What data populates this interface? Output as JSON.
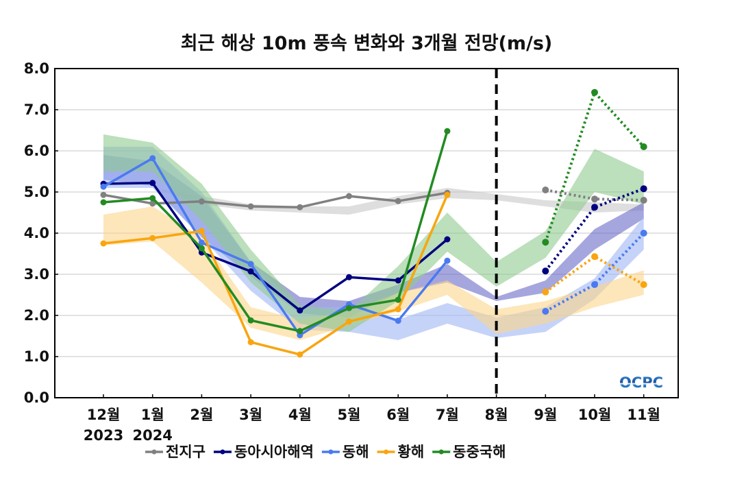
{
  "chart_data": {
    "type": "line",
    "title": "최근 해상 10m 풍속 변화와 3개월 전망(m/s)",
    "xlabel": "",
    "ylabel": "",
    "ylim": [
      0,
      8
    ],
    "yticks": [
      "0.0",
      "1.0",
      "2.0",
      "3.0",
      "4.0",
      "5.0",
      "6.0",
      "7.0",
      "8.0"
    ],
    "grid": "horizontal",
    "categories": [
      "12월",
      "1월",
      "2월",
      "3월",
      "4월",
      "5월",
      "6월",
      "7월",
      "8월",
      "9월",
      "10월",
      "11월"
    ],
    "year_labels": [
      {
        "category": "12월",
        "label": "2023"
      },
      {
        "category": "1월",
        "label": "2024"
      }
    ],
    "divider_category": "8월",
    "legend_placement": "bottom-center",
    "series": [
      {
        "name": "전지구",
        "color": "#808080",
        "band_color": "#c8c8c8",
        "observed": [
          4.93,
          4.72,
          4.77,
          4.65,
          4.63,
          4.9,
          4.78,
          4.98
        ],
        "forecast_categories": [
          "9월",
          "10월",
          "11월"
        ],
        "forecast": [
          5.05,
          4.83,
          4.8
        ],
        "band_lower": [
          5.1,
          5.1,
          4.7,
          4.55,
          4.5,
          4.45,
          4.7,
          4.85,
          4.8,
          4.65,
          4.5,
          4.55
        ],
        "band_upper": [
          5.1,
          5.1,
          4.9,
          4.7,
          4.65,
          4.65,
          4.9,
          5.1,
          4.95,
          4.8,
          4.75,
          4.7
        ]
      },
      {
        "name": "동아시아해역",
        "color": "#000080",
        "band_color": "#6a6ac8",
        "observed": [
          5.2,
          5.22,
          3.53,
          3.07,
          2.12,
          2.93,
          2.85,
          3.85
        ],
        "forecast_categories": [
          "9월",
          "10월",
          "11월"
        ],
        "forecast": [
          3.08,
          4.63,
          5.08
        ],
        "band_lower": [
          5.3,
          5.15,
          3.9,
          2.95,
          2.05,
          1.95,
          2.55,
          2.8,
          2.35,
          2.55,
          3.6,
          4.35
        ],
        "band_upper": [
          5.9,
          5.75,
          4.9,
          3.3,
          2.45,
          2.35,
          2.75,
          3.25,
          2.45,
          2.85,
          4.1,
          4.75
        ]
      },
      {
        "name": "동해",
        "color": "#4a7af0",
        "band_color": "#9fb6f5",
        "observed": [
          5.13,
          5.82,
          3.77,
          3.25,
          1.52,
          2.27,
          1.87,
          3.33
        ],
        "forecast_categories": [
          "9월",
          "10월",
          "11월"
        ],
        "forecast": [
          2.1,
          2.75,
          4.0
        ],
        "band_lower": [
          5.1,
          5.1,
          3.9,
          2.6,
          1.65,
          1.6,
          1.4,
          1.8,
          1.45,
          1.6,
          2.4,
          3.6
        ],
        "band_upper": [
          6.1,
          6.1,
          5.0,
          3.3,
          2.2,
          2.2,
          1.9,
          2.3,
          1.95,
          2.2,
          2.9,
          4.4
        ]
      },
      {
        "name": "황해",
        "color": "#f8a510",
        "band_color": "#fcd58a",
        "observed": [
          3.75,
          3.88,
          4.05,
          1.35,
          1.05,
          1.85,
          2.15,
          4.93
        ],
        "forecast_categories": [
          "9월",
          "10월",
          "11월"
        ],
        "forecast": [
          2.57,
          3.43,
          2.75
        ],
        "band_lower": [
          3.7,
          3.8,
          2.8,
          1.7,
          1.4,
          1.75,
          2.1,
          2.5,
          1.55,
          1.8,
          2.2,
          2.5
        ],
        "band_upper": [
          4.45,
          4.65,
          3.9,
          2.2,
          1.9,
          2.1,
          2.55,
          2.85,
          2.15,
          2.35,
          2.7,
          3.1
        ]
      },
      {
        "name": "동중국해",
        "color": "#228b22",
        "band_color": "#8fca8f",
        "observed": [
          4.75,
          4.85,
          3.63,
          1.88,
          1.62,
          2.18,
          2.38,
          6.48
        ],
        "forecast_categories": [
          "9월",
          "10월",
          "11월"
        ],
        "forecast": [
          3.78,
          7.42,
          6.1
        ],
        "band_lower": [
          5.5,
          5.5,
          4.3,
          2.8,
          1.8,
          1.6,
          2.35,
          3.55,
          2.7,
          3.4,
          5.0,
          4.7
        ],
        "band_upper": [
          6.4,
          6.2,
          5.2,
          3.6,
          2.25,
          2.1,
          3.2,
          4.5,
          3.3,
          4.05,
          6.05,
          5.5
        ]
      }
    ],
    "logo_text": "OCPC"
  }
}
